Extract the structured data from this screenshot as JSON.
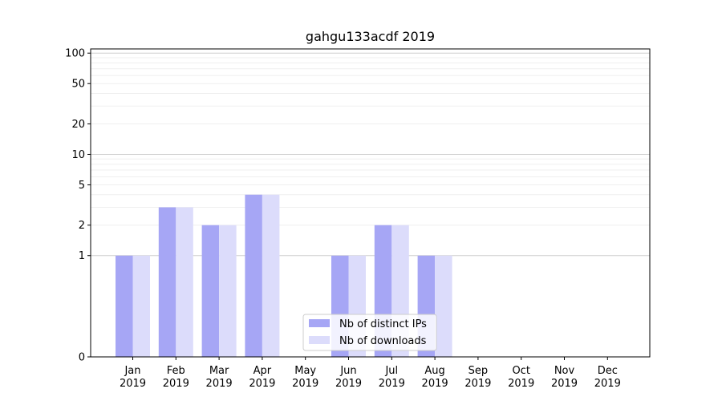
{
  "chart_data": {
    "type": "bar",
    "title": "gahgu133acdf 2019",
    "xlabel": "",
    "ylabel": "",
    "categories": [
      [
        "Jan",
        "2019"
      ],
      [
        "Feb",
        "2019"
      ],
      [
        "Mar",
        "2019"
      ],
      [
        "Apr",
        "2019"
      ],
      [
        "May",
        "2019"
      ],
      [
        "Jun",
        "2019"
      ],
      [
        "Jul",
        "2019"
      ],
      [
        "Aug",
        "2019"
      ],
      [
        "Sep",
        "2019"
      ],
      [
        "Oct",
        "2019"
      ],
      [
        "Nov",
        "2019"
      ],
      [
        "Dec",
        "2019"
      ]
    ],
    "series": [
      {
        "name": "Nb of distinct IPs",
        "color": "#a6a6f5",
        "values": [
          1,
          3,
          2,
          4,
          0,
          1,
          2,
          1,
          0,
          0,
          0,
          0
        ]
      },
      {
        "name": "Nb of downloads",
        "color": "#dcdcfb",
        "values": [
          1,
          3,
          2,
          4,
          0,
          1,
          2,
          1,
          0,
          0,
          0,
          0
        ]
      }
    ],
    "yscale": "symlog",
    "ylim": [
      0,
      110
    ],
    "yticks": [
      0,
      1,
      2,
      5,
      10,
      20,
      50,
      100
    ],
    "grid": true,
    "legend_position": "bottom-center"
  }
}
